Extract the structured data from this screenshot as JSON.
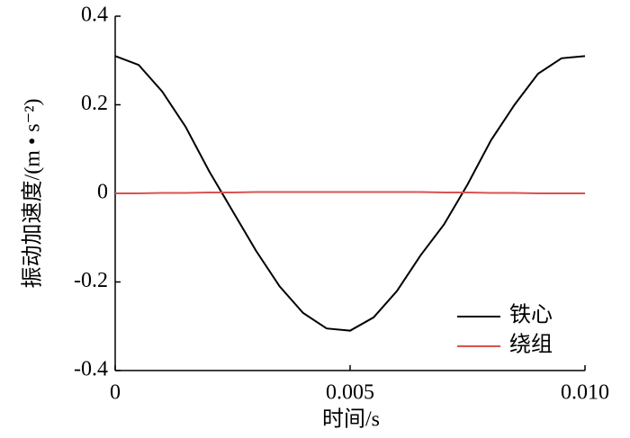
{
  "chart_data": {
    "type": "line",
    "xlabel": "时间/s",
    "ylabel": "振动加速度/(m • s⁻²)",
    "x": [
      0,
      0.0005,
      0.001,
      0.0015,
      0.002,
      0.0025,
      0.003,
      0.0035,
      0.004,
      0.0045,
      0.005,
      0.0055,
      0.006,
      0.0065,
      0.007,
      0.0075,
      0.008,
      0.0085,
      0.009,
      0.0095,
      0.01
    ],
    "series": [
      {
        "name": "铁心",
        "color": "#000000",
        "values": [
          0.31,
          0.29,
          0.23,
          0.15,
          0.05,
          -0.04,
          -0.13,
          -0.21,
          -0.27,
          -0.305,
          -0.31,
          -0.28,
          -0.22,
          -0.14,
          -0.07,
          0.02,
          0.12,
          0.2,
          0.27,
          0.305,
          0.31
        ]
      },
      {
        "name": "绕组",
        "color": "#d9534f",
        "values": [
          0,
          0,
          0.001,
          0.001,
          0.002,
          0.002,
          0.003,
          0.003,
          0.003,
          0.003,
          0.003,
          0.003,
          0.003,
          0.003,
          0.002,
          0.002,
          0.001,
          0.001,
          0,
          0,
          0
        ]
      }
    ],
    "xlim": [
      0,
      0.01
    ],
    "ylim": [
      -0.4,
      0.4
    ],
    "xticks": [
      0,
      0.005,
      {
        "value": 0.01,
        "label": "0.010"
      }
    ],
    "yticks": [
      -0.4,
      -0.2,
      0,
      0.2,
      0.4
    ],
    "legend": "lower right"
  }
}
